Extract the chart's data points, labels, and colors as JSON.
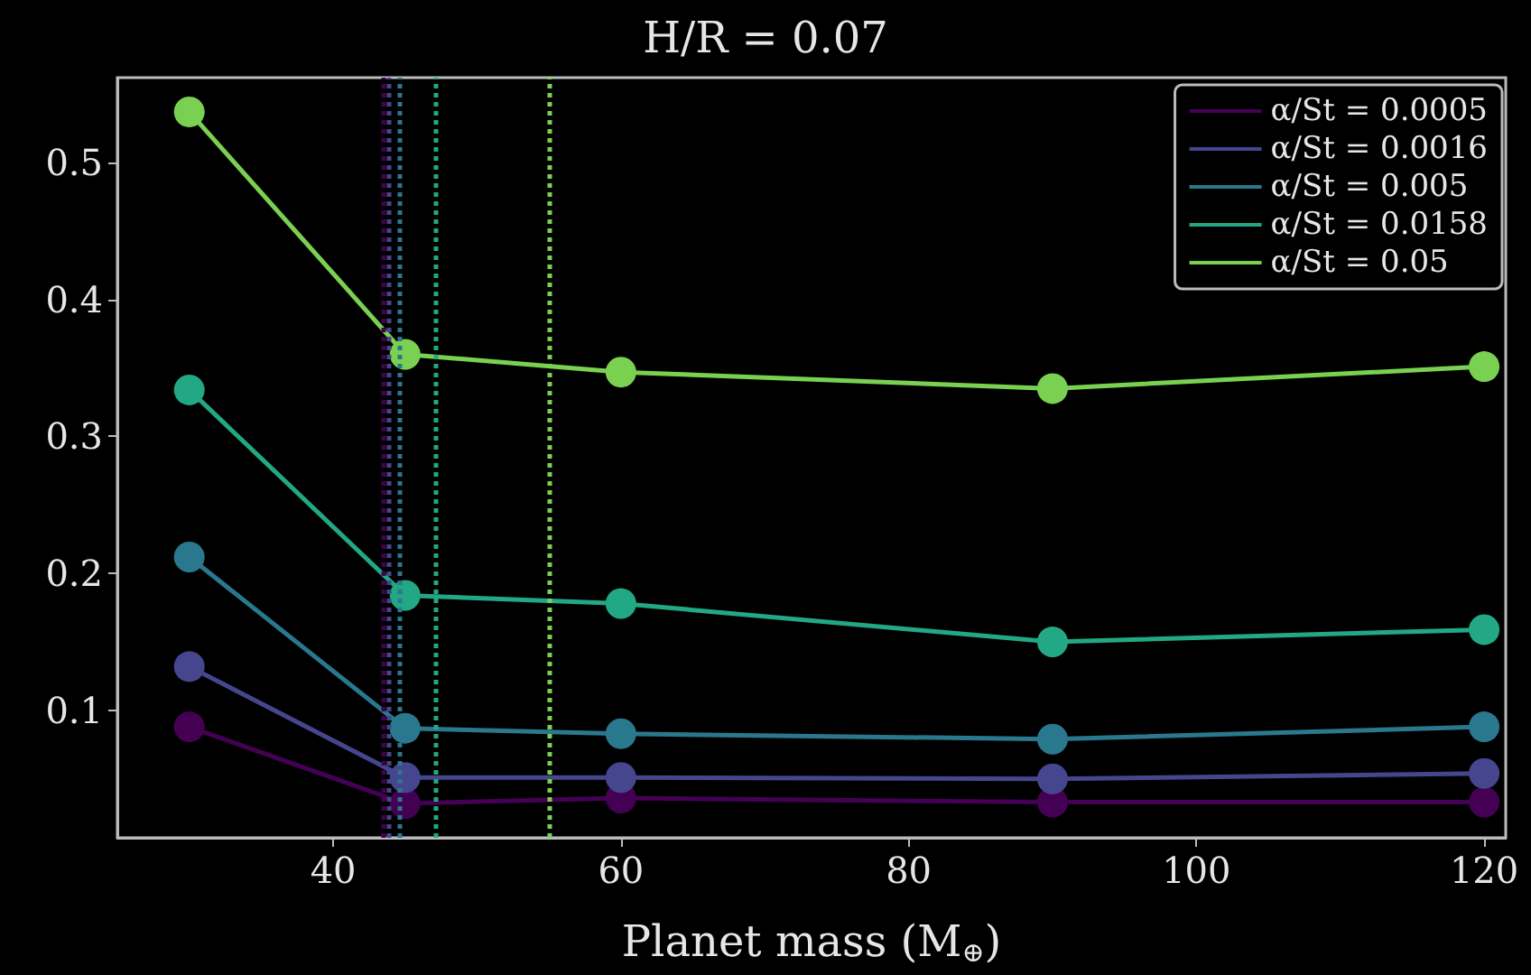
{
  "chart_data": {
    "type": "line",
    "title": "H/R = 0.07",
    "xlabel": "Planet mass (M$_{⊕}$)",
    "x": [
      30,
      45,
      60,
      90,
      120
    ],
    "series": [
      {
        "name": "α/St = 0.0005",
        "color": "#440154",
        "values": [
          0.088,
          0.032,
          0.036,
          0.033,
          0.033
        ]
      },
      {
        "name": "α/St = 0.0016",
        "color": "#46468f",
        "values": [
          0.132,
          0.051,
          0.051,
          0.05,
          0.054
        ]
      },
      {
        "name": "α/St = 0.005",
        "color": "#2a788e",
        "values": [
          0.212,
          0.087,
          0.083,
          0.079,
          0.088
        ]
      },
      {
        "name": "α/St = 0.0158",
        "color": "#22a884",
        "values": [
          0.334,
          0.184,
          0.178,
          0.15,
          0.159
        ]
      },
      {
        "name": "α/St = 0.05",
        "color": "#7ad151",
        "values": [
          0.537,
          0.36,
          0.347,
          0.335,
          0.351
        ]
      }
    ],
    "ref_lines": [
      {
        "axis": "x",
        "value": 43.5,
        "color": "#440154",
        "line_style": "dotted"
      },
      {
        "axis": "x",
        "value": 43.9,
        "color": "#46468f",
        "line_style": "dotted"
      },
      {
        "axis": "x",
        "value": 44.6,
        "color": "#2a788e",
        "line_style": "dotted"
      },
      {
        "axis": "x",
        "value": 47.1,
        "color": "#22a884",
        "line_style": "dotted"
      },
      {
        "axis": "x",
        "value": 55.0,
        "color": "#7ad151",
        "line_style": "dotted"
      }
    ],
    "xlim": [
      25,
      121.5
    ],
    "xticks": [
      40,
      60,
      80,
      100,
      120
    ],
    "ylim": [
      0.007,
      0.562
    ],
    "yticks": [
      0.1,
      0.2,
      0.3,
      0.4,
      0.5
    ],
    "grid": false,
    "legend": "top right",
    "marker": "circle",
    "line_style": "solid"
  }
}
